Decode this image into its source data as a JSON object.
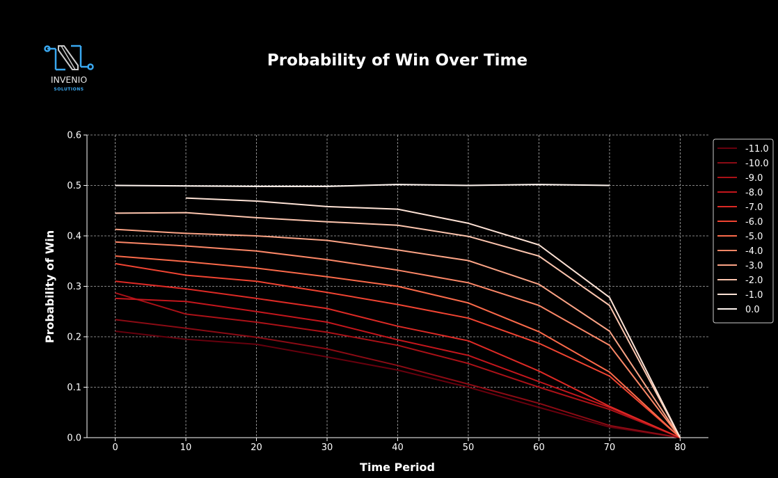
{
  "logo": {
    "name": "INVENIO",
    "tagline": "SOLUTIONS",
    "accent_color": "#3aa8f0",
    "mark_color": "#cccccc"
  },
  "chart_data": {
    "type": "line",
    "title": "Probability of Win Over Time",
    "xlabel": "Time Period",
    "ylabel": "Probability of Win",
    "xlim": [
      -4,
      84
    ],
    "ylim": [
      0,
      0.6
    ],
    "xticks": [
      0,
      10,
      20,
      30,
      40,
      50,
      60,
      70,
      80
    ],
    "yticks": [
      0.0,
      0.1,
      0.2,
      0.3,
      0.4,
      0.5,
      0.6
    ],
    "xtick_labels": [
      "0",
      "10",
      "20",
      "30",
      "40",
      "50",
      "60",
      "70",
      "80"
    ],
    "ytick_labels": [
      "0.0",
      "0.1",
      "0.2",
      "0.3",
      "0.4",
      "0.5",
      "0.6"
    ],
    "grid": true,
    "legend_position": "right",
    "background": "#000000",
    "series": [
      {
        "name": "-11.0",
        "color": "#67000d",
        "x": [
          0,
          10,
          20,
          30,
          40,
          50,
          60,
          70,
          80
        ],
        "y": [
          0.211,
          0.195,
          0.185,
          0.16,
          0.134,
          0.1,
          0.06,
          0.021,
          0.0
        ]
      },
      {
        "name": "-10.0",
        "color": "#8b0b14",
        "x": [
          0,
          10,
          20,
          30,
          40,
          50,
          60,
          70,
          80
        ],
        "y": [
          0.234,
          0.217,
          0.199,
          0.176,
          0.143,
          0.106,
          0.068,
          0.024,
          0.0
        ]
      },
      {
        "name": "-9.0",
        "color": "#ab1117",
        "x": [
          0,
          10,
          20,
          30,
          40,
          50,
          60,
          70,
          80
        ],
        "y": [
          0.287,
          0.245,
          0.229,
          0.209,
          0.183,
          0.147,
          0.1,
          0.056,
          0.0
        ]
      },
      {
        "name": "-8.0",
        "color": "#c4161c",
        "x": [
          0,
          10,
          20,
          30,
          40,
          50,
          60,
          70,
          80
        ],
        "y": [
          0.276,
          0.27,
          0.25,
          0.229,
          0.194,
          0.163,
          0.111,
          0.06,
          0.0
        ]
      },
      {
        "name": "-7.0",
        "color": "#dd2a25",
        "x": [
          0,
          10,
          20,
          30,
          40,
          50,
          60,
          70,
          80
        ],
        "y": [
          0.31,
          0.295,
          0.276,
          0.256,
          0.221,
          0.192,
          0.132,
          0.062,
          0.0
        ]
      },
      {
        "name": "-6.0",
        "color": "#f14432",
        "x": [
          0,
          10,
          20,
          30,
          40,
          50,
          60,
          70,
          80
        ],
        "y": [
          0.345,
          0.322,
          0.31,
          0.288,
          0.264,
          0.237,
          0.187,
          0.122,
          0.0
        ]
      },
      {
        "name": "-5.0",
        "color": "#fb6a4a",
        "x": [
          0,
          10,
          20,
          30,
          40,
          50,
          60,
          70,
          80
        ],
        "y": [
          0.36,
          0.349,
          0.336,
          0.319,
          0.3,
          0.267,
          0.21,
          0.13,
          0.0
        ]
      },
      {
        "name": "-4.0",
        "color": "#fc8767",
        "x": [
          0,
          10,
          20,
          30,
          40,
          50,
          60,
          70,
          80
        ],
        "y": [
          0.388,
          0.38,
          0.37,
          0.353,
          0.332,
          0.307,
          0.262,
          0.183,
          0.0
        ]
      },
      {
        "name": "-3.0",
        "color": "#fca486",
        "x": [
          0,
          10,
          20,
          30,
          40,
          50,
          60,
          70,
          80
        ],
        "y": [
          0.413,
          0.405,
          0.4,
          0.391,
          0.372,
          0.351,
          0.304,
          0.211,
          0.0
        ]
      },
      {
        "name": "-2.0",
        "color": "#fdc5ae",
        "x": [
          0,
          10,
          20,
          30,
          40,
          50,
          60,
          70,
          80
        ],
        "y": [
          0.445,
          0.446,
          0.436,
          0.428,
          0.421,
          0.399,
          0.36,
          0.262,
          0.0
        ]
      },
      {
        "name": "-1.0",
        "color": "#fee3d6",
        "x": [
          10,
          20,
          30,
          40,
          50,
          60,
          70,
          80
        ],
        "y": [
          0.475,
          0.469,
          0.458,
          0.453,
          0.425,
          0.382,
          0.278,
          0.0
        ]
      },
      {
        "name": "0.0",
        "color": "#fff5f0",
        "x": [
          0,
          10,
          20,
          30,
          40,
          50,
          60,
          70
        ],
        "y": [
          0.5,
          0.499,
          0.498,
          0.498,
          0.502,
          0.5,
          0.502,
          0.5
        ]
      }
    ]
  }
}
